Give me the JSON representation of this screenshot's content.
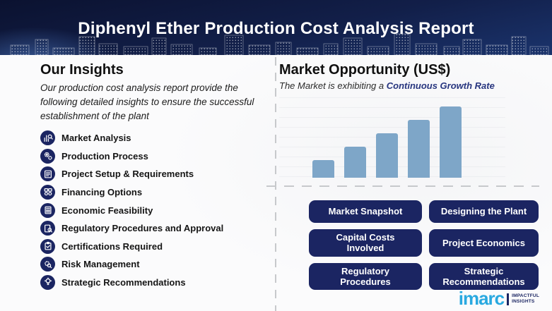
{
  "header": {
    "title": "Diphenyl Ether Production Cost Analysis Report"
  },
  "insights": {
    "heading": "Our Insights",
    "subtitle": "Our production cost analysis report provide the following detailed insights to ensure the successful establishment of the plant",
    "items": [
      {
        "label": "Market Analysis",
        "icon": "market-analysis-icon"
      },
      {
        "label": "Production Process",
        "icon": "production-process-icon"
      },
      {
        "label": "Project Setup & Requirements",
        "icon": "project-setup-icon"
      },
      {
        "label": "Financing Options",
        "icon": "financing-options-icon"
      },
      {
        "label": "Economic Feasibility",
        "icon": "economic-feasibility-icon"
      },
      {
        "label": "Regulatory Procedures and Approval",
        "icon": "regulatory-approval-icon"
      },
      {
        "label": "Certifications Required",
        "icon": "certifications-icon"
      },
      {
        "label": "Risk Management",
        "icon": "risk-management-icon"
      },
      {
        "label": "Strategic Recommendations",
        "icon": "strategic-recommendations-icon"
      }
    ]
  },
  "market": {
    "heading": "Market Opportunity (US$)",
    "subtitle_prefix": "The Market is exhibiting a ",
    "subtitle_highlight": "Continuous Growth Rate",
    "buttons": [
      "Market Snapshot",
      "Designing the Plant",
      "Capital Costs Involved",
      "Project Economics",
      "Regulatory Procedures",
      "Strategic Recommendations"
    ]
  },
  "chart_data": {
    "type": "bar",
    "x": [
      1,
      2,
      3,
      4,
      5
    ],
    "values": [
      25,
      44,
      63,
      82,
      101
    ],
    "value_units": "relative height (no axis tick labels shown)",
    "title": "Market Opportunity (US$)",
    "annotation": "The Market is exhibiting a Continuous Growth Rate",
    "xlabel": "",
    "ylabel": "",
    "ylim": [
      0,
      110
    ],
    "grid": "faint horizontal lines",
    "legend": "none",
    "bar_color": "#7ea6c8"
  },
  "logo": {
    "brand": "imarc",
    "tagline_line1": "IMPACTFUL",
    "tagline_line2": "INSIGHTS"
  },
  "colors": {
    "navy": "#1b2562",
    "header_top": "#0b1230",
    "header_bottom": "#1d3a78",
    "bar_blue": "#7ea6c8",
    "highlight_navy": "#27357f",
    "brand_blue": "#2aa9e0"
  }
}
